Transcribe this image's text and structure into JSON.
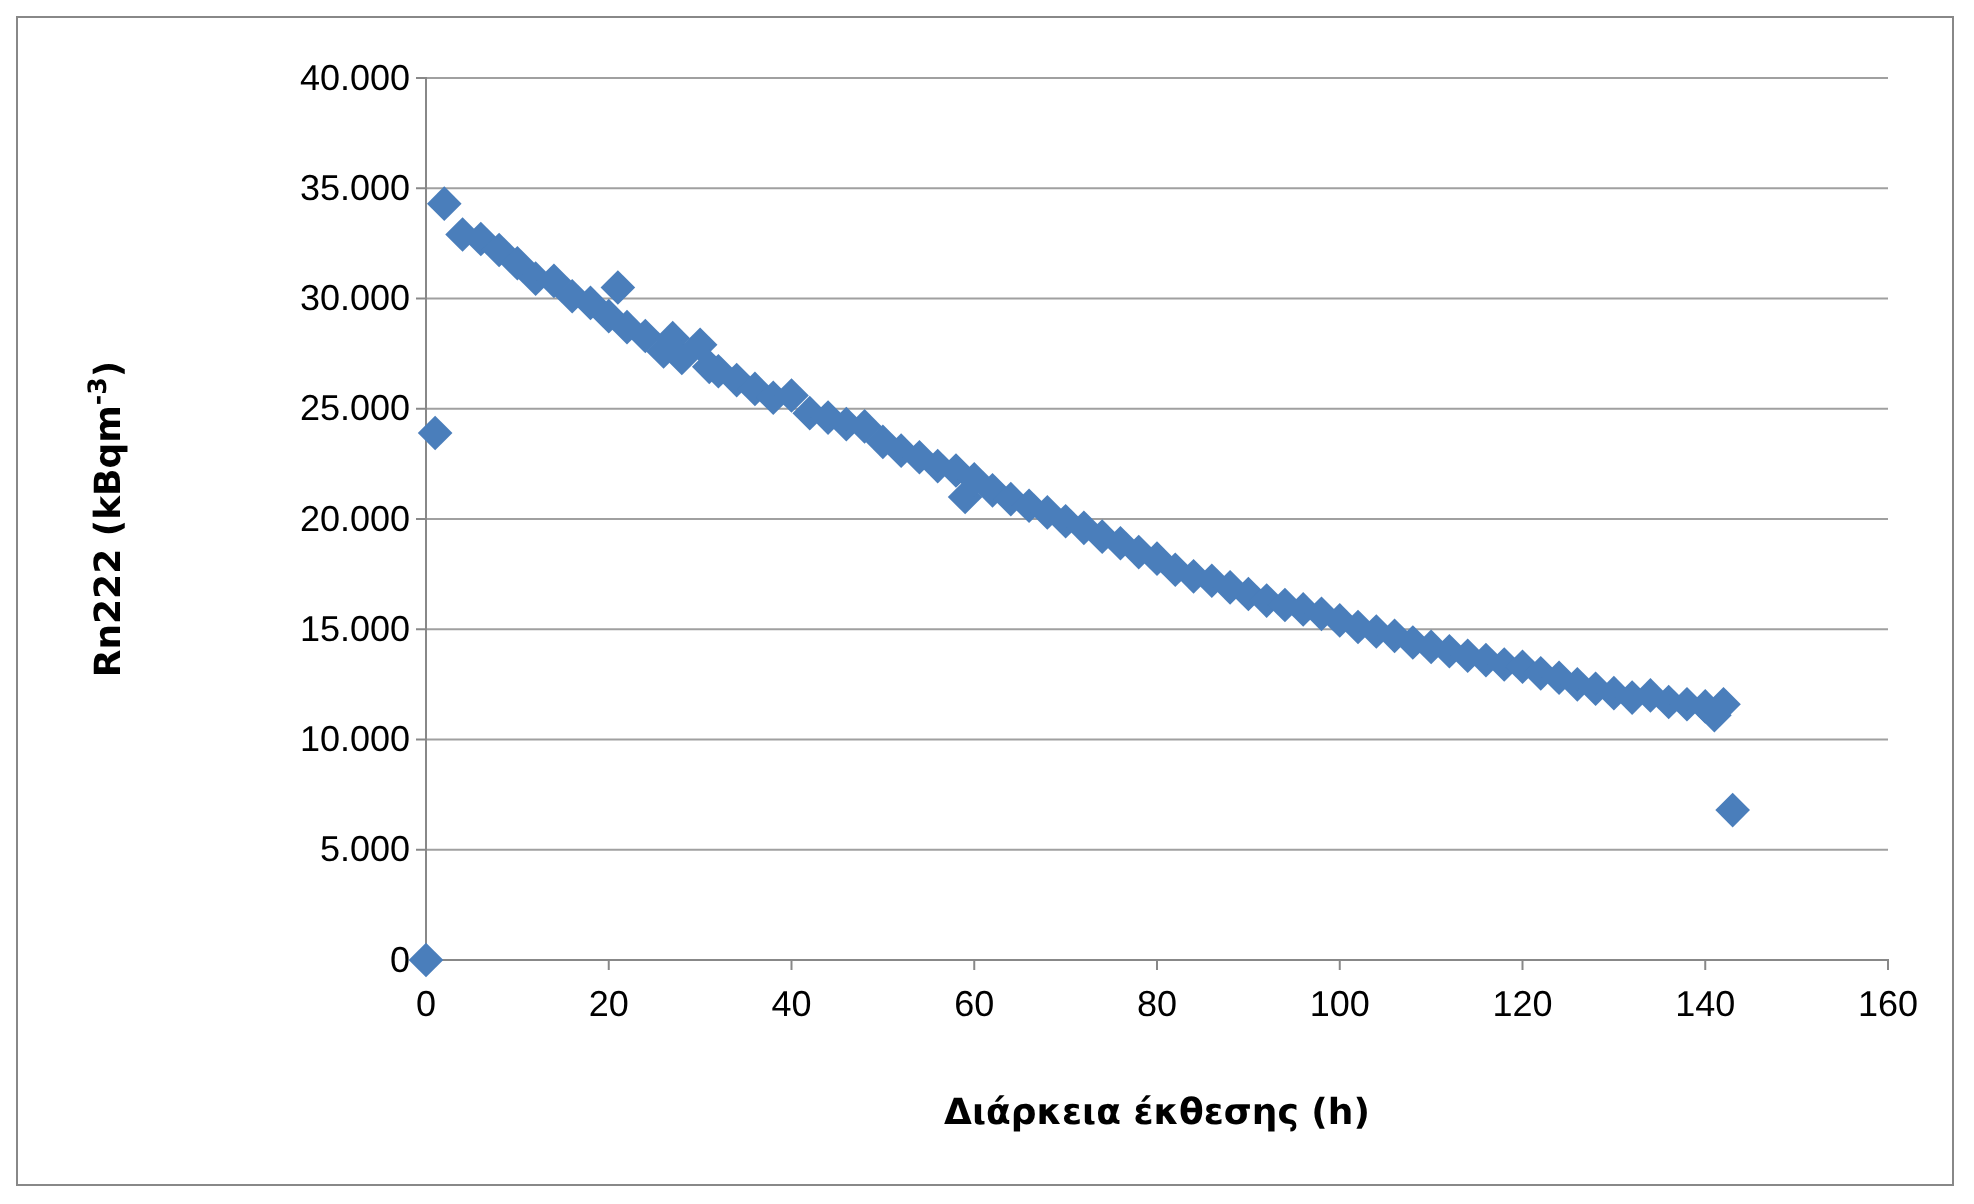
{
  "chart_data": {
    "type": "scatter",
    "xlabel": "Διάρκεια έκθεσης (h)",
    "ylabel": "Rn222 (kBqm$^{-3}$)",
    "xlim": [
      0,
      160
    ],
    "xticks": [
      0,
      20,
      40,
      60,
      80,
      100,
      120,
      140,
      160
    ],
    "ylim": [
      0,
      40000
    ],
    "yticks": [
      {
        "value": 0,
        "label": "0"
      },
      {
        "value": 5000,
        "label": "5.000"
      },
      {
        "value": 10000,
        "label": "10.000"
      },
      {
        "value": 15000,
        "label": "15.000"
      },
      {
        "value": 20000,
        "label": "20.000"
      },
      {
        "value": 25000,
        "label": "25.000"
      },
      {
        "value": 30000,
        "label": "30.000"
      },
      {
        "value": 35000,
        "label": "35.000"
      },
      {
        "value": 40000,
        "label": "40.000"
      }
    ],
    "grid": "y",
    "marker": "diamond",
    "series": [
      {
        "color": "#4a7ebb",
        "x": [
          0,
          1,
          2,
          4,
          6,
          8,
          10,
          12,
          14,
          16,
          18,
          20,
          21,
          22,
          24,
          26,
          27,
          28,
          30,
          31,
          32,
          34,
          36,
          38,
          40,
          42,
          44,
          46,
          48,
          50,
          52,
          54,
          56,
          58,
          59,
          60,
          62,
          64,
          66,
          68,
          70,
          72,
          74,
          76,
          78,
          80,
          82,
          84,
          86,
          88,
          90,
          92,
          94,
          96,
          98,
          100,
          102,
          104,
          106,
          108,
          110,
          112,
          114,
          116,
          118,
          120,
          122,
          124,
          126,
          128,
          130,
          132,
          134,
          136,
          138,
          140,
          141,
          142,
          143
        ],
        "values": [
          0,
          23900,
          34300,
          32900,
          32700,
          32200,
          31600,
          30900,
          30800,
          30100,
          29800,
          29200,
          30500,
          28700,
          28300,
          27600,
          28200,
          27300,
          27900,
          26900,
          26700,
          26300,
          25900,
          25500,
          25600,
          24800,
          24600,
          24300,
          24200,
          23500,
          23100,
          22800,
          22400,
          22200,
          21000,
          21800,
          21300,
          20900,
          20600,
          20300,
          19900,
          19600,
          19200,
          18900,
          18500,
          18200,
          17700,
          17400,
          17200,
          16900,
          16600,
          16300,
          16100,
          15900,
          15700,
          15400,
          15100,
          14900,
          14700,
          14400,
          14200,
          14000,
          13800,
          13600,
          13400,
          13300,
          13000,
          12800,
          12500,
          12300,
          12100,
          11900,
          12000,
          11700,
          11600,
          11500,
          11100,
          11600,
          6800
        ]
      }
    ]
  }
}
